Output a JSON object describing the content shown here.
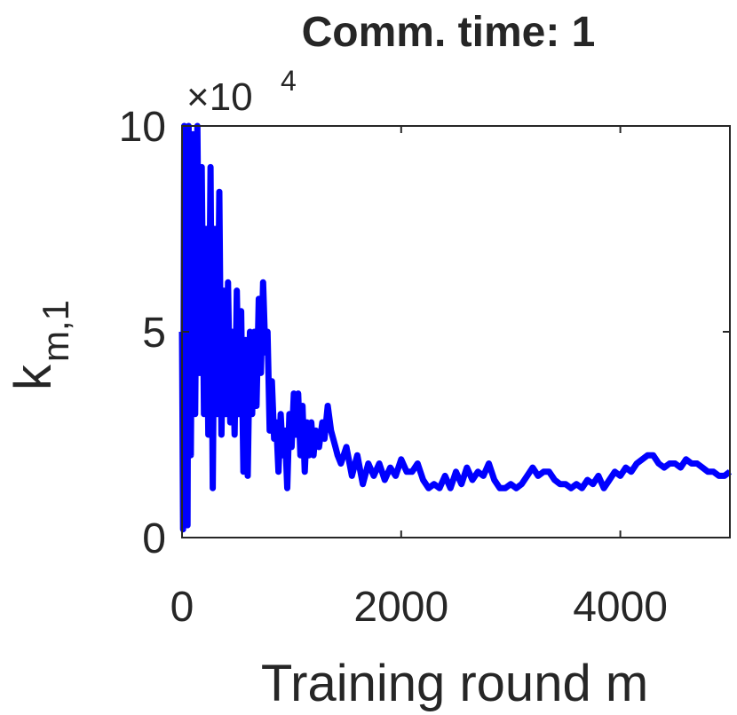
{
  "chart_data": {
    "type": "line",
    "title": "Comm. time: 1",
    "xlabel": "Training round m",
    "ylabel": "k",
    "ylabel_subscript": "m,1",
    "y_multiplier": "×10",
    "y_multiplier_power": "4",
    "color": "#0000ff",
    "xlim": [
      0,
      5000
    ],
    "xticks": [
      0,
      2000,
      4000
    ],
    "ylim": [
      0,
      10
    ],
    "yticks": [
      0,
      5,
      10
    ],
    "x": [
      0,
      10,
      20,
      30,
      40,
      50,
      60,
      80,
      100,
      120,
      140,
      160,
      180,
      200,
      220,
      240,
      260,
      280,
      300,
      320,
      340,
      360,
      380,
      400,
      420,
      440,
      460,
      480,
      500,
      520,
      540,
      560,
      580,
      600,
      620,
      640,
      660,
      680,
      700,
      720,
      740,
      760,
      780,
      800,
      820,
      840,
      860,
      880,
      900,
      920,
      940,
      960,
      980,
      1000,
      1020,
      1040,
      1060,
      1080,
      1100,
      1120,
      1140,
      1160,
      1180,
      1200,
      1220,
      1250,
      1280,
      1300,
      1330,
      1360,
      1400,
      1420,
      1450,
      1500,
      1550,
      1600,
      1650,
      1700,
      1750,
      1800,
      1850,
      1900,
      1950,
      2000,
      2050,
      2100,
      2150,
      2200,
      2250,
      2300,
      2350,
      2400,
      2450,
      2500,
      2550,
      2600,
      2650,
      2700,
      2750,
      2800,
      2850,
      2900,
      2950,
      3000,
      3050,
      3100,
      3150,
      3200,
      3250,
      3300,
      3350,
      3400,
      3450,
      3500,
      3550,
      3600,
      3650,
      3700,
      3750,
      3800,
      3850,
      3900,
      3950,
      4000,
      4050,
      4100,
      4150,
      4200,
      4250,
      4300,
      4350,
      4400,
      4450,
      4500,
      4550,
      4600,
      4650,
      4700,
      4750,
      4800,
      4850,
      4900,
      4950,
      5000
    ],
    "values": [
      5,
      0.2,
      10,
      1,
      9.5,
      0.3,
      10,
      2,
      9.8,
      3,
      10,
      4,
      9,
      3,
      7.5,
      2.5,
      9,
      1.2,
      7.5,
      3,
      8.4,
      2.5,
      6,
      3,
      6.2,
      2.8,
      5,
      2.5,
      6,
      3,
      5.5,
      1.6,
      4.8,
      1.5,
      5,
      3,
      5,
      3.2,
      5.8,
      4,
      6.2,
      4.5,
      5,
      2.6,
      3.8,
      2.4,
      2.8,
      1.6,
      3,
      2,
      2.6,
      1.2,
      3,
      2.2,
      3.5,
      2.5,
      3.5,
      2,
      3.2,
      1.6,
      2.8,
      2,
      2.8,
      2,
      2.6,
      2.2,
      2.8,
      2.4,
      3.2,
      2.6,
      2.2,
      2,
      1.8,
      2.2,
      1.5,
      2,
      1.3,
      1.8,
      1.5,
      1.8,
      1.4,
      1.7,
      1.5,
      1.9,
      1.6,
      1.6,
      1.8,
      1.4,
      1.2,
      1.3,
      1.2,
      1.5,
      1.2,
      1.6,
      1.3,
      1.7,
      1.4,
      1.6,
      1.5,
      1.8,
      1.4,
      1.2,
      1.2,
      1.3,
      1.2,
      1.3,
      1.5,
      1.7,
      1.5,
      1.6,
      1.6,
      1.4,
      1.3,
      1.3,
      1.2,
      1.3,
      1.2,
      1.4,
      1.3,
      1.5,
      1.2,
      1.4,
      1.6,
      1.5,
      1.7,
      1.6,
      1.8,
      1.9,
      2,
      2,
      1.8,
      1.7,
      1.8,
      1.8,
      1.7,
      1.9,
      1.8,
      1.8,
      1.7,
      1.6,
      1.6,
      1.5,
      1.5,
      1.6
    ]
  }
}
